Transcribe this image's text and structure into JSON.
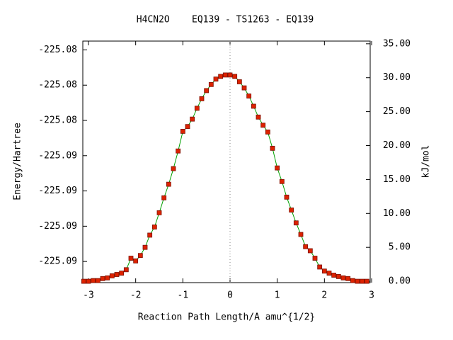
{
  "chart_data": {
    "type": "line",
    "title": "H4CN2O    EQ139 - TS1263 - EQ139",
    "x_label": "Reaction Path Length/A amu^{1/2}",
    "y_label": "Energy/Hartree",
    "y2_label": "kJ/mol",
    "xlim": [
      -3.12,
      2.97
    ],
    "xticks": [
      -3,
      -2,
      -1,
      0,
      1,
      2,
      3
    ],
    "ylim": [
      -225.0927,
      -225.079
    ],
    "yticks": [
      {
        "value": -225.0915,
        "label": "-225.09"
      },
      {
        "value": -225.0895,
        "label": "-225.09"
      },
      {
        "value": -225.0875,
        "label": "-225.09"
      },
      {
        "value": -225.0855,
        "label": "-225.09"
      },
      {
        "value": -225.0835,
        "label": "-225.08"
      },
      {
        "value": -225.0815,
        "label": "-225.08"
      },
      {
        "value": -225.0795,
        "label": "-225.08"
      }
    ],
    "y2lim": [
      -0.2,
      35.4
    ],
    "y2ticks": [
      {
        "value": 0,
        "label": "0.00"
      },
      {
        "value": 5,
        "label": "5.00"
      },
      {
        "value": 10,
        "label": "10.00"
      },
      {
        "value": 15,
        "label": "15.00"
      },
      {
        "value": 20,
        "label": "20.00"
      },
      {
        "value": 25,
        "label": "25.00"
      },
      {
        "value": 30,
        "label": "30.00"
      },
      {
        "value": 35,
        "label": "35.00"
      }
    ],
    "x": [
      -3.1,
      -3.0,
      -2.9,
      -2.8,
      -2.7,
      -2.6,
      -2.5,
      -2.4,
      -2.3,
      -2.2,
      -2.1,
      -2.0,
      -1.9,
      -1.8,
      -1.7,
      -1.6,
      -1.5,
      -1.4,
      -1.3,
      -1.2,
      -1.1,
      -1.0,
      -0.9,
      -0.8,
      -0.7,
      -0.6,
      -0.5,
      -0.4,
      -0.3,
      -0.2,
      -0.1,
      0,
      0.1,
      0.2,
      0.3,
      0.4,
      0.5,
      0.6,
      0.7,
      0.8,
      0.9,
      1.0,
      1.1,
      1.2,
      1.3,
      1.4,
      1.5,
      1.6,
      1.7,
      1.8,
      1.9,
      2.0,
      2.1,
      2.2,
      2.3,
      2.4,
      2.5,
      2.6,
      2.7,
      2.8,
      2.9
    ],
    "series": [
      {
        "axis": "y2",
        "color": "#00a000",
        "marker_color": "#dd2200",
        "values": [
          0,
          0,
          0.1,
          0.1,
          0.4,
          0.5,
          0.8,
          1.0,
          1.2,
          1.7,
          3.4,
          3.0,
          3.8,
          5.0,
          6.8,
          8.0,
          10.1,
          12.3,
          14.3,
          16.6,
          19.2,
          22.1,
          22.8,
          23.9,
          25.5,
          26.9,
          28.1,
          29.0,
          29.8,
          30.2,
          30.4,
          30.4,
          30.2,
          29.4,
          28.5,
          27.3,
          25.8,
          24.2,
          23.0,
          22.0,
          19.6,
          16.7,
          14.7,
          12.4,
          10.5,
          8.6,
          6.9,
          5.1,
          4.5,
          3.4,
          2.1,
          1.5,
          1.2,
          0.9,
          0.7,
          0.5,
          0.4,
          0.1,
          0,
          0,
          0
        ]
      }
    ]
  }
}
